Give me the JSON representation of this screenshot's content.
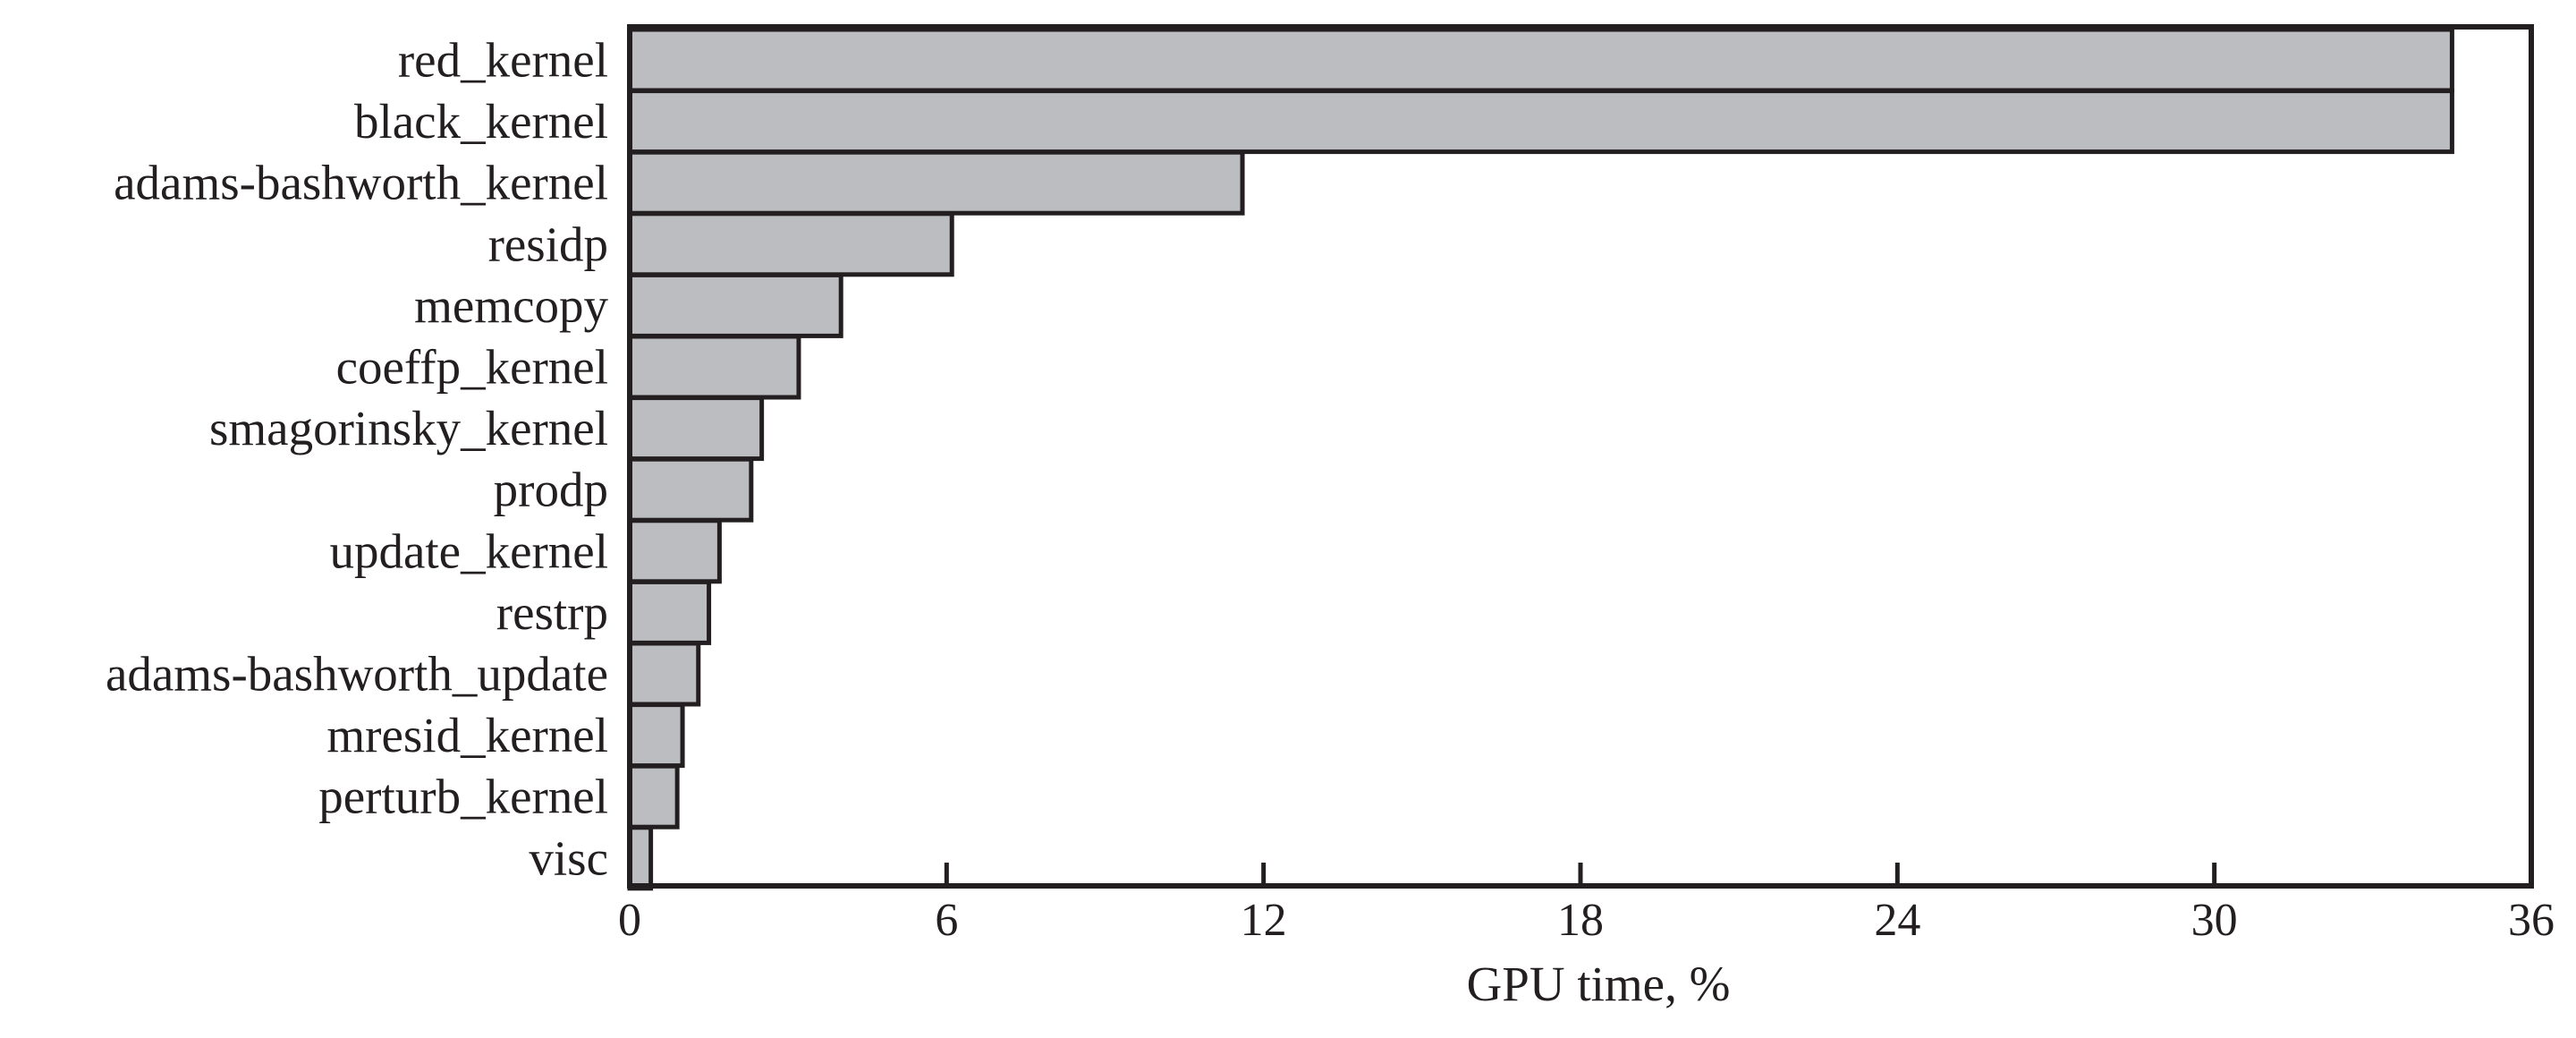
{
  "chart_data": {
    "type": "bar",
    "orientation": "horizontal",
    "categories": [
      "red_kernel",
      "black_kernel",
      "adams-bashworth_kernel",
      "residp",
      "memcopy",
      "coeffp_kernel",
      "smagorinsky_kernel",
      "prodp",
      "update_kernel",
      "restrp",
      "adams-bashworth_update",
      "mresid_kernel",
      "perturb_kernel",
      "visc"
    ],
    "values": [
      34.5,
      34.5,
      11.6,
      6.1,
      4.0,
      3.2,
      2.5,
      2.3,
      1.7,
      1.5,
      1.3,
      1.0,
      0.9,
      0.4
    ],
    "title": "",
    "xlabel": "GPU time, %",
    "ylabel": "",
    "xlim": [
      0,
      36
    ],
    "xticks": [
      "0",
      "6",
      "12",
      "18",
      "24",
      "30",
      "36"
    ],
    "grid": false,
    "legend": "none",
    "colors": {
      "bar_fill": "#bcbdc0",
      "bar_stroke": "#231f20",
      "text": "#231f20",
      "background": "#ffffff"
    }
  }
}
